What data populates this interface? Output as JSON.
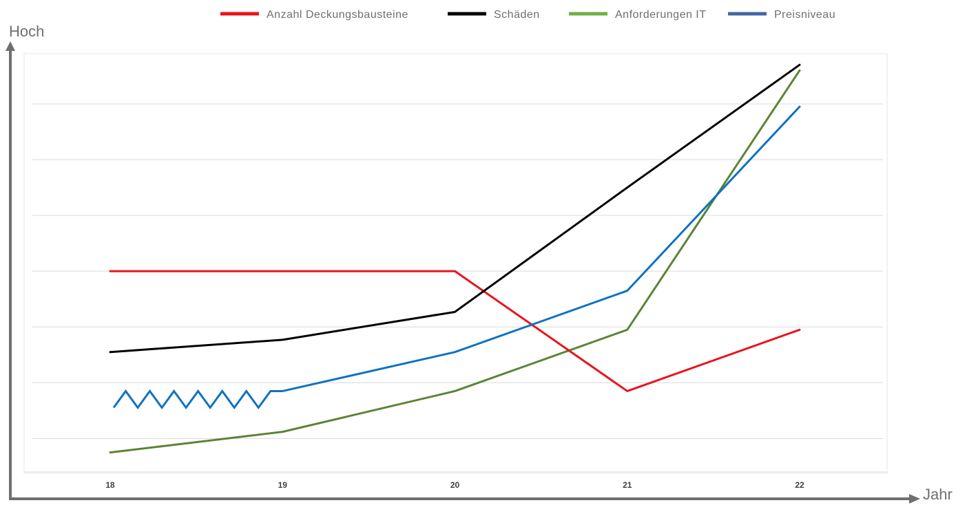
{
  "chart_data": {
    "type": "line",
    "title": "",
    "ylabel": "Hoch",
    "xlabel": "Jahr",
    "x": [
      "18",
      "19",
      "20",
      "21",
      "22"
    ],
    "ylim": [
      0,
      7.5
    ],
    "grid": true,
    "legend_position": "top",
    "series": [
      {
        "name": "Anzahl Deckungsbausteine",
        "color": "#e8141b",
        "values": [
          3.6,
          3.6,
          3.6,
          1.45,
          2.55
        ]
      },
      {
        "name": "Schäden",
        "color": "#000000",
        "values": [
          2.15,
          2.37,
          2.87,
          5.1,
          7.3
        ]
      },
      {
        "name": "Anforderungen IT",
        "color": "#5a8436",
        "legend_color": "#70ad47",
        "values": [
          0.35,
          0.72,
          1.45,
          2.55,
          7.2
        ]
      },
      {
        "name": "Preisniveau",
        "color": "#0f72c0",
        "legend_color": "#41679f",
        "values": [
          1.3,
          1.45,
          2.15,
          3.25,
          6.55
        ]
      }
    ]
  }
}
